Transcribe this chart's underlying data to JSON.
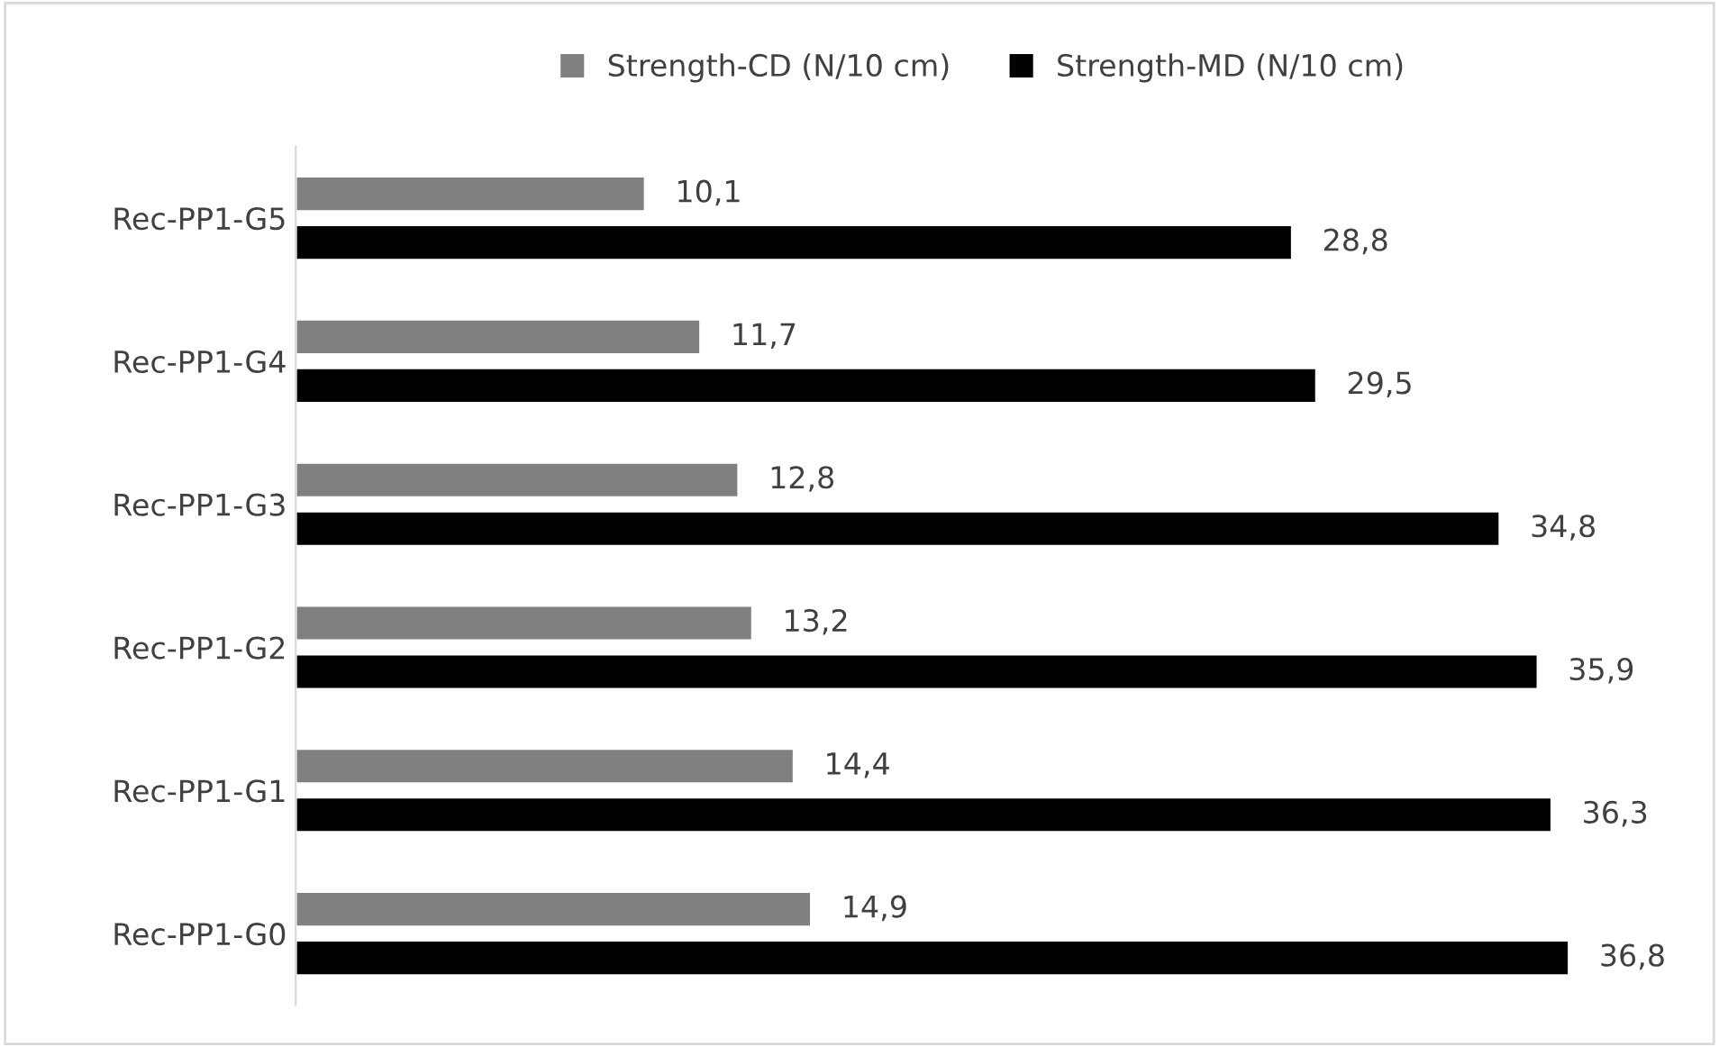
{
  "chart_data": {
    "type": "bar",
    "orientation": "horizontal",
    "categories": [
      "Rec-PP1-G5",
      "Rec-PP1-G4",
      "Rec-PP1-G3",
      "Rec-PP1-G2",
      "Rec-PP1-G1",
      "Rec-PP1-G0"
    ],
    "series": [
      {
        "name": "Strength-CD (N/10 cm)",
        "color": "#808080",
        "values": [
          10.1,
          11.7,
          12.8,
          13.2,
          14.4,
          14.9
        ],
        "value_labels": [
          "10,1",
          "11,7",
          "12,8",
          "13,2",
          "14,4",
          "14,9"
        ]
      },
      {
        "name": "Strength-MD (N/10 cm)",
        "color": "#000000",
        "values": [
          28.8,
          29.5,
          34.8,
          35.9,
          36.3,
          36.8
        ],
        "value_labels": [
          "28,8",
          "29,5",
          "34,8",
          "35,9",
          "36,3",
          "36,8"
        ]
      }
    ],
    "legend": "top",
    "tick_labels": "y",
    "grid": false
  }
}
